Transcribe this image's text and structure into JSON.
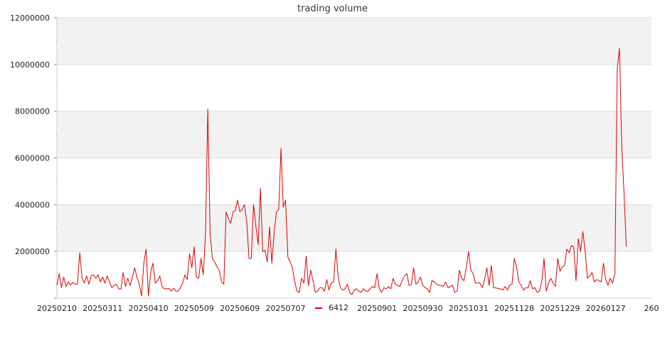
{
  "chart_data": {
    "type": "line",
    "title": "trading volume",
    "xlabel": "",
    "ylabel": "",
    "ylim": [
      0,
      12000000
    ],
    "yticks": [
      0,
      2000000,
      4000000,
      6000000,
      8000000,
      10000000,
      12000000
    ],
    "ytick_labels": [
      "",
      "2000000",
      "4000000",
      "6000000",
      "8000000",
      "10000000",
      "12000000"
    ],
    "x_tick_labels": [
      {
        "index": 0,
        "label": "20250210"
      },
      {
        "index": 20,
        "label": "20250311"
      },
      {
        "index": 40,
        "label": "20250410"
      },
      {
        "index": 60,
        "label": "20250509"
      },
      {
        "index": 80,
        "label": "20250609"
      },
      {
        "index": 100,
        "label": "20250707"
      },
      {
        "index": 140,
        "label": "20250901"
      },
      {
        "index": 160,
        "label": "20250930"
      },
      {
        "index": 180,
        "label": "20251031"
      },
      {
        "index": 200,
        "label": "20251128"
      },
      {
        "index": 220,
        "label": "20251229"
      },
      {
        "index": 240,
        "label": "20260127"
      },
      {
        "index": 260,
        "label": "260"
      }
    ],
    "x_max_index": 260,
    "band_background": true,
    "line_color": "#e00000",
    "band_color": "#f2f2f2",
    "grid_color": "#dddddd",
    "legend": {
      "label": "6412",
      "placement": "bottom-center"
    },
    "series": [
      {
        "name": "6412",
        "values": [
          550000,
          1050000,
          450000,
          900000,
          500000,
          700000,
          560000,
          680000,
          600000,
          600000,
          1950000,
          850000,
          650000,
          950000,
          600000,
          950000,
          1000000,
          850000,
          1000000,
          700000,
          900000,
          650000,
          950000,
          700000,
          450000,
          550000,
          600000,
          400000,
          400000,
          1100000,
          500000,
          850000,
          550000,
          900000,
          1300000,
          900000,
          600000,
          100000,
          1500000,
          2100000,
          100000,
          1100000,
          1500000,
          650000,
          750000,
          950000,
          500000,
          400000,
          400000,
          420000,
          300000,
          420000,
          300000,
          300000,
          450000,
          650000,
          1000000,
          800000,
          1900000,
          1300000,
          2200000,
          900000,
          850000,
          1700000,
          1000000,
          2800000,
          8100000,
          2800000,
          1700000,
          1550000,
          1350000,
          1200000,
          700000,
          600000,
          3700000,
          3400000,
          3200000,
          3700000,
          3750000,
          4200000,
          3700000,
          3800000,
          4000000,
          3300000,
          1700000,
          1700000,
          4000000,
          3100000,
          2300000,
          4700000,
          2000000,
          2050000,
          1550000,
          3050000,
          1500000,
          2800000,
          3700000,
          3800000,
          6400000,
          3900000,
          4200000,
          1750000,
          1550000,
          1300000,
          700000,
          300000,
          250000,
          850000,
          650000,
          1800000,
          550000,
          1200000,
          750000,
          250000,
          300000,
          450000,
          450000,
          300000,
          800000,
          350000,
          650000,
          700000,
          2100000,
          900000,
          450000,
          350000,
          400000,
          600000,
          250000,
          150000,
          350000,
          400000,
          300000,
          250000,
          400000,
          300000,
          300000,
          400000,
          500000,
          450000,
          1050000,
          400000,
          250000,
          450000,
          400000,
          500000,
          400000,
          850000,
          600000,
          550000,
          500000,
          750000,
          950000,
          1050000,
          550000,
          600000,
          1300000,
          600000,
          700000,
          900000,
          550000,
          450000,
          400000,
          250000,
          750000,
          700000,
          600000,
          550000,
          550000,
          500000,
          700000,
          450000,
          500000,
          550000,
          250000,
          300000,
          1200000,
          850000,
          750000,
          1300000,
          2000000,
          1200000,
          1050000,
          650000,
          650000,
          650000,
          450000,
          800000,
          1300000,
          550000,
          1400000,
          450000,
          450000,
          400000,
          400000,
          350000,
          500000,
          350000,
          550000,
          600000,
          1700000,
          1350000,
          700000,
          550000,
          350000,
          450000,
          450000,
          750000,
          400000,
          450000,
          250000,
          300000,
          700000,
          1700000,
          300000,
          650000,
          850000,
          650000,
          500000,
          1700000,
          1150000,
          1350000,
          1400000,
          2100000,
          1950000,
          2250000,
          2200000,
          750000,
          2550000,
          2000000,
          2850000,
          2000000,
          850000,
          950000,
          1100000,
          700000,
          800000,
          750000,
          700000,
          1500000,
          800000,
          550000,
          850000,
          650000,
          1050000,
          9800000,
          10700000,
          6500000,
          4500000,
          2200000
        ]
      }
    ]
  }
}
